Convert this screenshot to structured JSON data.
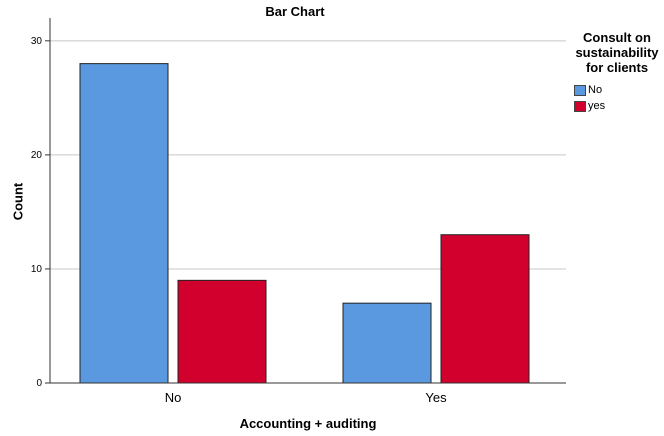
{
  "chart_data": {
    "type": "bar",
    "title": "Bar Chart",
    "xlabel": "Accounting + auditing",
    "ylabel": "Count",
    "categories": [
      "No",
      "Yes"
    ],
    "series": [
      {
        "name": "No",
        "values": [
          28,
          7
        ],
        "color": "#5a98e0"
      },
      {
        "name": "yes",
        "values": [
          9,
          13
        ],
        "color": "#d2002d"
      }
    ],
    "ylim": [
      0,
      32
    ],
    "yticks": [
      0,
      10,
      20,
      30
    ],
    "grid": true,
    "legend": {
      "title": "Consult on\nsustainability\nfor clients",
      "position": "right"
    }
  }
}
